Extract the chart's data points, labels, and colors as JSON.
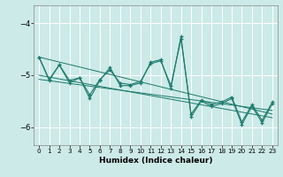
{
  "xlabel": "Humidex (Indice chaleur)",
  "bg_color": "#cceae7",
  "grid_color": "#ffffff",
  "line_color": "#1e7b6e",
  "xlim": [
    -0.5,
    23.5
  ],
  "ylim": [
    -6.35,
    -3.65
  ],
  "xticks": [
    0,
    1,
    2,
    3,
    4,
    5,
    6,
    7,
    8,
    9,
    10,
    11,
    12,
    13,
    14,
    15,
    16,
    17,
    18,
    19,
    20,
    21,
    22,
    23
  ],
  "yticks": [
    -6,
    -5,
    -4
  ],
  "line1_x": [
    0,
    1,
    2,
    3,
    4,
    5,
    6,
    7,
    8,
    9,
    10,
    11,
    12,
    13,
    14,
    15,
    16,
    17,
    18,
    19,
    20,
    21,
    22,
    23
  ],
  "line1_y": [
    -4.65,
    -5.1,
    -4.8,
    -5.15,
    -5.05,
    -5.45,
    -5.1,
    -4.85,
    -5.2,
    -5.2,
    -5.15,
    -4.75,
    -4.7,
    -5.25,
    -4.25,
    -5.8,
    -5.5,
    -5.6,
    -5.55,
    -5.45,
    -5.95,
    -5.6,
    -5.92,
    -5.55
  ],
  "line2_x": [
    0,
    1,
    2,
    3,
    4,
    5,
    6,
    7,
    8,
    9,
    10,
    11,
    12,
    13,
    14,
    15,
    16,
    17,
    18,
    19,
    20,
    21,
    22,
    23
  ],
  "line2_y": [
    -4.65,
    -5.08,
    -4.8,
    -5.1,
    -5.05,
    -5.38,
    -5.08,
    -4.9,
    -5.15,
    -5.18,
    -5.12,
    -4.78,
    -4.72,
    -5.2,
    -4.3,
    -5.75,
    -5.48,
    -5.56,
    -5.52,
    -5.42,
    -5.9,
    -5.57,
    -5.87,
    -5.52
  ],
  "trend1_x": [
    0,
    23
  ],
  "trend1_y": [
    -4.65,
    -5.75
  ],
  "trend2_x": [
    0,
    23
  ],
  "trend2_y": [
    -5.0,
    -5.82
  ],
  "trend3_x": [
    0,
    23
  ],
  "trend3_y": [
    -5.08,
    -5.68
  ],
  "marker_size": 3.5,
  "lw": 0.8
}
